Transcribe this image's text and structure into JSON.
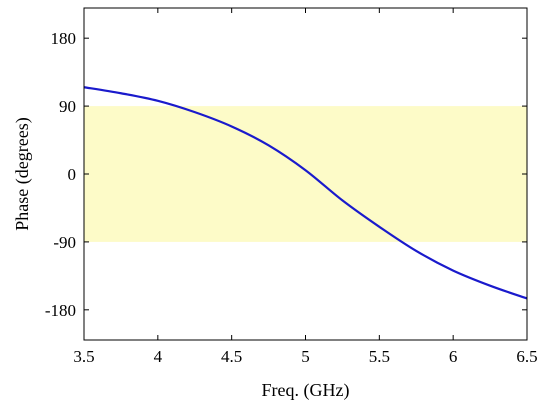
{
  "chart_data": {
    "type": "line",
    "xlabel": "Freq. (GHz)",
    "ylabel": "Phase (degrees)",
    "xlim": [
      3.5,
      6.5
    ],
    "ylim": [
      -220,
      220
    ],
    "xticks": [
      3.5,
      4,
      4.5,
      5,
      5.5,
      6,
      6.5
    ],
    "xtick_labels": [
      "3.5",
      "4",
      "4.5",
      "5",
      "5.5",
      "6",
      "6.5"
    ],
    "yticks": [
      180,
      90,
      0,
      -90,
      -180
    ],
    "ytick_labels": [
      "180",
      "90",
      "0",
      "-90",
      "-180"
    ],
    "grid": false,
    "band": {
      "y_from": -90,
      "y_to": 90,
      "color": "#fdfbc8"
    },
    "series": [
      {
        "color": "#1a1acc",
        "x": [
          3.5,
          3.75,
          4.0,
          4.25,
          4.5,
          4.75,
          5.0,
          5.25,
          5.5,
          5.75,
          6.0,
          6.25,
          6.5
        ],
        "y": [
          115,
          107,
          97,
          82,
          63,
          38,
          5,
          -35,
          -70,
          -102,
          -128,
          -148,
          -165
        ]
      }
    ]
  }
}
